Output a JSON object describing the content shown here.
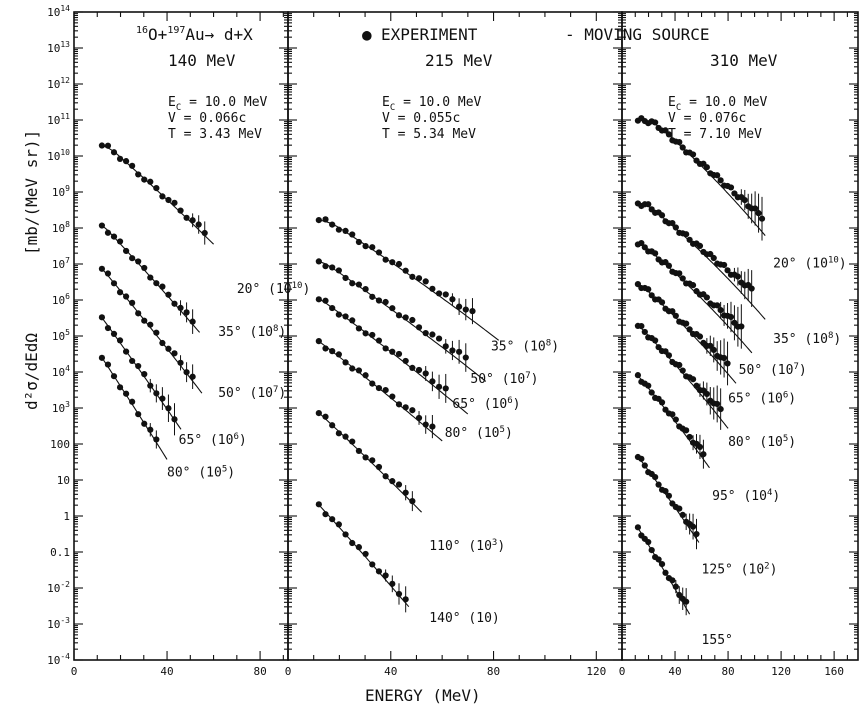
{
  "chart_data": {
    "type": "scatter",
    "reaction": {
      "o_mass": "16",
      "o_sym": "O+",
      "au_mass": "197",
      "au_sym": "Au",
      "rest": "→ d+X"
    },
    "legend": {
      "marker": "●",
      "experiment": "EXPERIMENT",
      "model": "- MOVING SOURCE"
    },
    "ylabel_main": "d²σ/dEdΩ",
    "ylabel_units": "[mb/(MeV sr)]",
    "xlabel": "ENERGY (MeV)",
    "ylim_log10": [
      -4,
      14
    ],
    "y_ticks": [
      {
        "v": 14,
        "label": "10",
        "sup": "14"
      },
      {
        "v": 13,
        "label": "10",
        "sup": "13"
      },
      {
        "v": 12,
        "label": "10",
        "sup": "12"
      },
      {
        "v": 11,
        "label": "10",
        "sup": "11"
      },
      {
        "v": 10,
        "label": "10",
        "sup": "10"
      },
      {
        "v": 9,
        "label": "10",
        "sup": "9"
      },
      {
        "v": 8,
        "label": "10",
        "sup": "8"
      },
      {
        "v": 7,
        "label": "10",
        "sup": "7"
      },
      {
        "v": 6,
        "label": "10",
        "sup": "6"
      },
      {
        "v": 5,
        "label": "10",
        "sup": "5"
      },
      {
        "v": 4,
        "label": "10",
        "sup": "4"
      },
      {
        "v": 3,
        "label": "10",
        "sup": "3"
      },
      {
        "v": 2,
        "label": "100",
        "sup": ""
      },
      {
        "v": 1,
        "label": "10",
        "sup": ""
      },
      {
        "v": 0,
        "label": "1",
        "sup": ""
      },
      {
        "v": -1,
        "label": "0.1",
        "sup": ""
      },
      {
        "v": -2,
        "label": "10",
        "sup": "-2"
      },
      {
        "v": -3,
        "label": "10",
        "sup": "-3"
      },
      {
        "v": -4,
        "label": "10",
        "sup": "-4"
      }
    ],
    "panels": [
      {
        "energy": "140",
        "energy_unit": "MeV",
        "params": {
          "ec": "E",
          "ec_sub": "C",
          "ec_val": "= 10.0 MeV",
          "v": "V",
          "v_val": "= 0.066c",
          "t": "T",
          "t_val": "= 3.43 MeV"
        },
        "xlim": [
          0,
          92
        ],
        "x_ticks": [
          {
            "v": 0,
            "label": "0"
          },
          {
            "v": 40,
            "label": "40"
          },
          {
            "v": 80,
            "label": "80"
          }
        ],
        "series": [
          {
            "angle": "20°",
            "scale": "(10",
            "scale_sup": "10",
            "scale_close": ")",
            "label_at": [
              70,
              6.2
            ],
            "x0": 12,
            "x1": 58,
            "logA": 10.05,
            "T": 7.6,
            "Ep": 18.5,
            "fit_to": 60,
            "err_from": 50
          },
          {
            "angle": "35°",
            "scale": "(10",
            "scale_sup": "8",
            "scale_close": ")",
            "label_at": [
              62,
              5.0
            ],
            "x0": 12,
            "x1": 52,
            "logA": 7.9,
            "T": 6.3,
            "Ep": 15,
            "fit_to": 54,
            "err_from": 44
          },
          {
            "angle": "50°",
            "scale": "(10",
            "scale_sup": "7",
            "scale_close": ")",
            "label_at": [
              62,
              3.3
            ],
            "x0": 12,
            "x1": 53,
            "logA": 6.8,
            "T": 5.6,
            "Ep": 13,
            "fit_to": 55,
            "err_from": 44
          },
          {
            "angle": "65°",
            "scale": "(10",
            "scale_sup": "6",
            "scale_close": ")",
            "label_at": [
              45,
              2.0
            ],
            "x0": 12,
            "x1": 44,
            "logA": 5.6,
            "T": 4.9,
            "Ep": 11,
            "fit_to": 46,
            "err_from": 32
          },
          {
            "angle": "80°",
            "scale": "(10",
            "scale_sup": "5",
            "scale_close": ")",
            "label_at": [
              40,
              1.1
            ],
            "x0": 12,
            "x1": 38,
            "logA": 4.6,
            "T": 4.4,
            "Ep": 10,
            "fit_to": 40,
            "err_from": 32
          }
        ]
      },
      {
        "energy": "215",
        "energy_unit": "MeV",
        "params": {
          "ec": "E",
          "ec_sub": "C",
          "ec_val": "= 10.0 MeV",
          "v": "V",
          "v_val": "= 0.055c",
          "t": "T",
          "t_val": "= 5.34 MeV"
        },
        "xlim": [
          0,
          130
        ],
        "x_ticks": [
          {
            "v": 0,
            "label": "0"
          },
          {
            "v": 40,
            "label": "40"
          },
          {
            "v": 80,
            "label": "80"
          },
          {
            "v": 120,
            "label": "120"
          }
        ],
        "series": [
          {
            "angle": "35°",
            "scale": "(10",
            "scale_sup": "8",
            "scale_close": ")",
            "label_at": [
              79,
              4.6
            ],
            "x0": 12,
            "x1": 74,
            "logA": 8.0,
            "T": 9.5,
            "Ep": 20,
            "fit_to": 82,
            "err_from": 64
          },
          {
            "angle": "50°",
            "scale": "(10",
            "scale_sup": "7",
            "scale_close": ")",
            "label_at": [
              71,
              3.7
            ],
            "x0": 12,
            "x1": 70,
            "logA": 6.9,
            "T": 9.0,
            "Ep": 17,
            "fit_to": 77,
            "err_from": 60
          },
          {
            "angle": "65°",
            "scale": "(10",
            "scale_sup": "6",
            "scale_close": ")",
            "label_at": [
              64,
              3.0
            ],
            "x0": 12,
            "x1": 62,
            "logA": 5.9,
            "T": 8.4,
            "Ep": 15,
            "fit_to": 70,
            "err_from": 52
          },
          {
            "angle": "80°",
            "scale": "(10",
            "scale_sup": "5",
            "scale_close": ")",
            "label_at": [
              61,
              2.2
            ],
            "x0": 12,
            "x1": 58,
            "logA": 4.8,
            "T": 8.0,
            "Ep": 13,
            "fit_to": 60,
            "err_from": 50
          },
          {
            "angle": "110°",
            "scale": "(10",
            "scale_sup": "3",
            "scale_close": ")",
            "label_at": [
              55,
              -0.95
            ],
            "x0": 12,
            "x1": 50,
            "logA": 3.0,
            "T": 6.6,
            "Ep": 10,
            "fit_to": 52,
            "err_from": 44
          },
          {
            "angle": "140°",
            "scale": "(10)",
            "scale_sup": "",
            "scale_close": "",
            "label_at": [
              55,
              -2.95
            ],
            "x0": 12,
            "x1": 46,
            "logA": 0.7,
            "T": 5.6,
            "Ep": 7,
            "fit_to": 47,
            "err_from": 38
          }
        ]
      },
      {
        "energy": "310",
        "energy_unit": "MeV",
        "params": {
          "ec": "E",
          "ec_sub": "C",
          "ec_val": "= 10.0 MeV",
          "v": "V",
          "v_val": "= 0.076c",
          "t": "T",
          "t_val": "= 7.10 MeV"
        },
        "xlim": [
          0,
          178
        ],
        "x_ticks": [
          {
            "v": 0,
            "label": "0"
          },
          {
            "v": 40,
            "label": "40"
          },
          {
            "v": 80,
            "label": "80"
          },
          {
            "v": 120,
            "label": "120"
          },
          {
            "v": 160,
            "label": "160"
          }
        ],
        "series": [
          {
            "angle": "20°",
            "scale": "(10",
            "scale_sup": "10",
            "scale_close": ")",
            "label_at": [
              114,
              6.9
            ],
            "x0": 12,
            "x1": 106,
            "logA": 10.75,
            "T": 13.5,
            "Ep": 30,
            "fit_to": 108,
            "err_from": 88
          },
          {
            "angle": "35°",
            "scale": "(10",
            "scale_sup": "8",
            "scale_close": ")",
            "label_at": [
              114,
              4.8
            ],
            "x0": 12,
            "x1": 100,
            "logA": 8.5,
            "T": 14.5,
            "Ep": 24,
            "fit_to": 108,
            "err_from": 84
          },
          {
            "angle": "50°",
            "scale": "(10",
            "scale_sup": "7",
            "scale_close": ")",
            "label_at": [
              88,
              3.95
            ],
            "x0": 12,
            "x1": 90,
            "logA": 7.4,
            "T": 14.0,
            "Ep": 20,
            "fit_to": 98,
            "err_from": 72
          },
          {
            "angle": "65°",
            "scale": "(10",
            "scale_sup": "6",
            "scale_close": ")",
            "label_at": [
              80,
              3.15
            ],
            "x0": 12,
            "x1": 80,
            "logA": 6.3,
            "T": 13.0,
            "Ep": 18,
            "fit_to": 86,
            "err_from": 62
          },
          {
            "angle": "80°",
            "scale": "(10",
            "scale_sup": "5",
            "scale_close": ")",
            "label_at": [
              80,
              1.95
            ],
            "x0": 12,
            "x1": 76,
            "logA": 5.2,
            "T": 11.5,
            "Ep": 15,
            "fit_to": 80,
            "err_from": 58
          },
          {
            "angle": "95°",
            "scale": "(10",
            "scale_sup": "4",
            "scale_close": ")",
            "label_at": [
              68,
              0.45
            ],
            "x0": 12,
            "x1": 64,
            "logA": 3.9,
            "T": 10.0,
            "Ep": 12,
            "fit_to": 66,
            "err_from": 52
          },
          {
            "angle": "125°",
            "scale": "(10",
            "scale_sup": "2",
            "scale_close": ")",
            "label_at": [
              60,
              -1.6
            ],
            "x0": 12,
            "x1": 58,
            "logA": 1.75,
            "T": 9.0,
            "Ep": 10,
            "fit_to": 58,
            "err_from": 46
          },
          {
            "angle": "155°",
            "scale": "",
            "scale_sup": "",
            "scale_close": "",
            "label_at": [
              60,
              -3.55
            ],
            "x0": 12,
            "x1": 50,
            "logA": -0.1,
            "T": 7.5,
            "Ep": 8,
            "fit_to": 51,
            "err_from": 40
          }
        ]
      }
    ]
  }
}
